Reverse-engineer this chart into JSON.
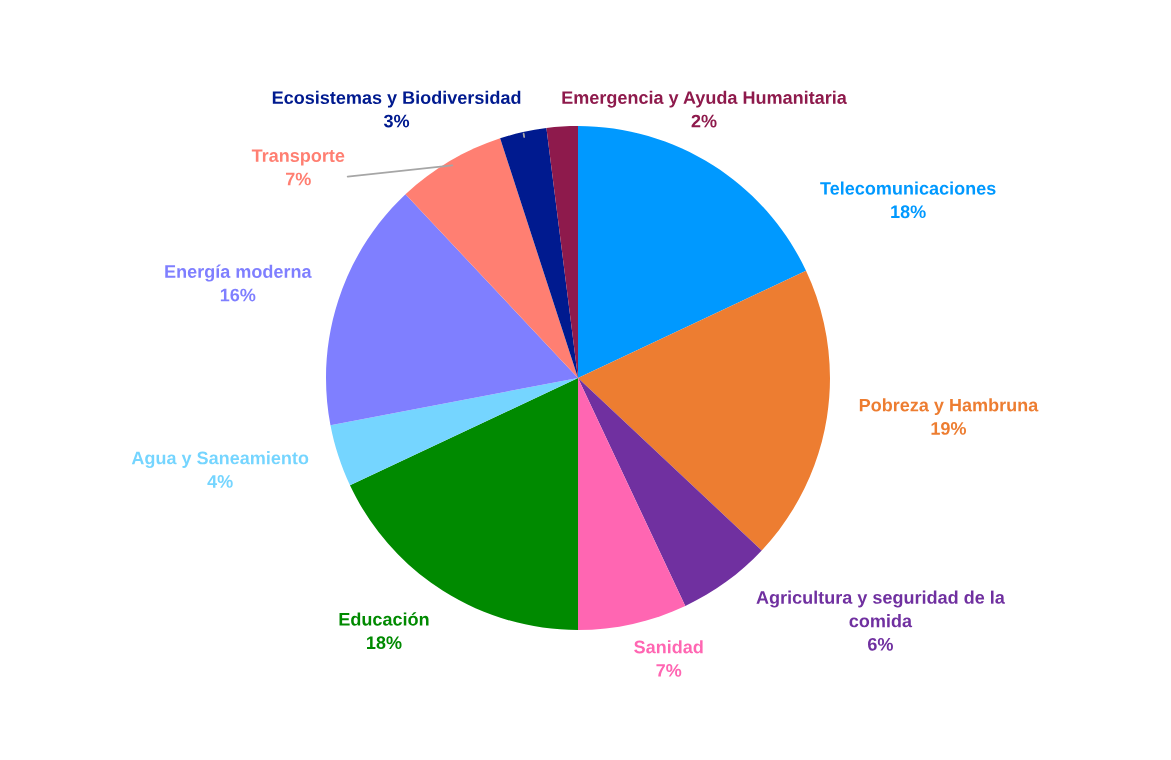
{
  "chart_data": {
    "type": "pie",
    "categories": [
      "Telecomunicaciones",
      "Pobreza y Hambruna",
      "Agricultura y seguridad de la\ncomida",
      "Sanidad",
      "Educación",
      "Agua y Saneamiento",
      "Energía moderna",
      "Transporte",
      "Ecosistemas y Biodiversidad",
      "Emergencia y Ayuda Humanitaria"
    ],
    "values": [
      18,
      19,
      6,
      7,
      18,
      4,
      16,
      7,
      3,
      2
    ],
    "value_labels": [
      "18%",
      "19%",
      "6%",
      "7%",
      "18%",
      "4%",
      "16%",
      "7%",
      "3%",
      "2%"
    ],
    "colors": [
      "#0099ff",
      "#ed7d31",
      "#7030a0",
      "#ff66b2",
      "#008a00",
      "#75d5ff",
      "#7f7fff",
      "#ff7f72",
      "#001a8f",
      "#8e1a4c"
    ]
  }
}
